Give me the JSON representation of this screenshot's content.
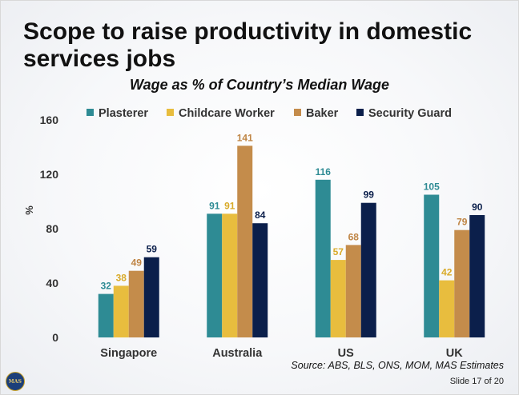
{
  "slide": {
    "title_line1": "Scope to raise productivity in domestic",
    "title_line2": "services jobs",
    "source": "Source: ABS, BLS, ONS, MOM, MAS Estimates",
    "slide_number": "Slide 17 of 20",
    "logo_text": "MAS"
  },
  "chart_data": {
    "type": "bar",
    "title": "Wage as % of Country’s Median Wage",
    "xlabel": "",
    "ylabel": "%",
    "ylim": [
      0,
      160
    ],
    "yticks": [
      0,
      40,
      80,
      120,
      160
    ],
    "grid": false,
    "legend_position": "top",
    "categories": [
      "Singapore",
      "Australia",
      "US",
      "UK"
    ],
    "series": [
      {
        "name": "Plasterer",
        "color": "#2e8b94",
        "label_color": "#2e8b94",
        "values": [
          32,
          91,
          116,
          105
        ]
      },
      {
        "name": "Childcare Worker",
        "color": "#e8bd3e",
        "label_color": "#d9ab2a",
        "values": [
          38,
          91,
          57,
          42
        ]
      },
      {
        "name": "Baker",
        "color": "#c48c4b",
        "label_color": "#bf8545",
        "values": [
          49,
          141,
          68,
          79
        ]
      },
      {
        "name": "Security Guard",
        "color": "#0b1f4b",
        "label_color": "#0b1f4b",
        "values": [
          59,
          84,
          99,
          90
        ]
      }
    ]
  }
}
